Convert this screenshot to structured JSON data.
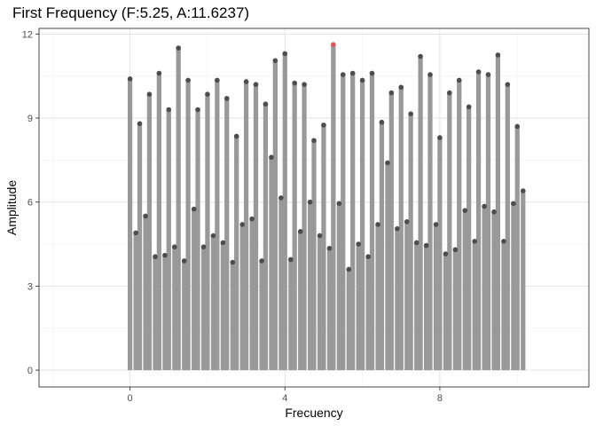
{
  "chart_data": {
    "type": "bar",
    "title": "First Frequency (F:5.25, A:11.6237)",
    "xlabel": "Frecuency",
    "ylabel": "Amplitude",
    "xlim": [
      -2.35,
      11.85
    ],
    "ylim": [
      -0.6,
      12.2
    ],
    "xticks": [
      0,
      4,
      8
    ],
    "yticks": [
      0,
      3,
      6,
      9,
      12
    ],
    "grid": true,
    "bar_width": 0.12,
    "bar_color": "#999999",
    "point_color": "#4d4d4d",
    "highlight_color": "#e15759",
    "highlight": {
      "x": 5.25,
      "y": 11.6237
    },
    "x": [
      0.0,
      0.15,
      0.25,
      0.4,
      0.5,
      0.65,
      0.75,
      0.9,
      1.0,
      1.15,
      1.25,
      1.4,
      1.5,
      1.65,
      1.75,
      1.9,
      2.0,
      2.15,
      2.25,
      2.4,
      2.5,
      2.65,
      2.75,
      2.9,
      3.0,
      3.15,
      3.25,
      3.4,
      3.5,
      3.65,
      3.75,
      3.9,
      4.0,
      4.15,
      4.25,
      4.4,
      4.5,
      4.65,
      4.75,
      4.9,
      5.0,
      5.15,
      5.25,
      5.4,
      5.5,
      5.65,
      5.75,
      5.9,
      6.0,
      6.15,
      6.25,
      6.4,
      6.5,
      6.65,
      6.75,
      6.9,
      7.0,
      7.15,
      7.25,
      7.4,
      7.5,
      7.65,
      7.75,
      7.9,
      8.0,
      8.15,
      8.25,
      8.4,
      8.5,
      8.65,
      8.75,
      8.9,
      9.0,
      9.15,
      9.25,
      9.4,
      9.5,
      9.65,
      9.75,
      9.9,
      10.0,
      10.15
    ],
    "y": [
      10.4,
      4.9,
      8.8,
      5.5,
      9.85,
      4.05,
      10.6,
      4.1,
      9.3,
      4.4,
      11.5,
      3.9,
      10.35,
      5.75,
      9.3,
      4.4,
      9.85,
      4.8,
      10.35,
      4.55,
      9.7,
      3.85,
      8.35,
      5.2,
      10.3,
      5.4,
      10.2,
      3.9,
      9.5,
      7.6,
      11.05,
      6.15,
      11.3,
      3.95,
      10.25,
      4.95,
      10.2,
      6.0,
      8.2,
      4.8,
      8.75,
      4.35,
      11.6237,
      5.95,
      10.55,
      3.6,
      10.6,
      4.5,
      10.35,
      4.05,
      10.6,
      5.2,
      8.85,
      7.4,
      9.9,
      5.05,
      10.1,
      5.3,
      9.15,
      4.55,
      11.2,
      4.45,
      10.55,
      5.2,
      8.3,
      4.15,
      9.9,
      4.3,
      10.35,
      5.7,
      9.4,
      4.6,
      10.65,
      5.85,
      10.55,
      5.65,
      11.25,
      4.6,
      10.2,
      5.95,
      8.7,
      6.4
    ]
  }
}
